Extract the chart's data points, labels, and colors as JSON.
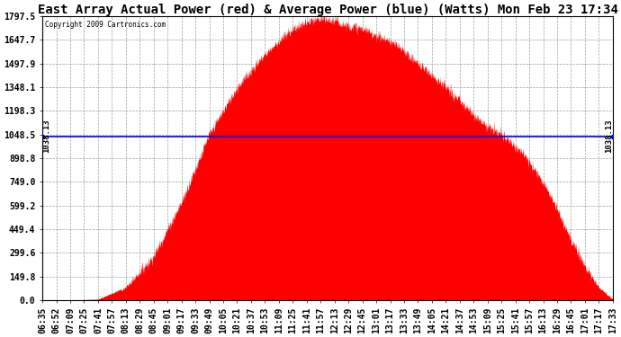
{
  "title": "East Array Actual Power (red) & Average Power (blue) (Watts) Mon Feb 23 17:34",
  "copyright": "Copyright 2009 Cartronics.com",
  "avg_power": 1038.13,
  "ylim": [
    0.0,
    1797.5
  ],
  "yticks": [
    0.0,
    149.8,
    299.6,
    449.4,
    599.2,
    749.0,
    898.8,
    1048.5,
    1198.3,
    1348.1,
    1497.9,
    1647.7,
    1797.5
  ],
  "ytick_labels": [
    "0.0",
    "149.8",
    "299.6",
    "449.4",
    "599.2",
    "749.0",
    "898.8",
    "1048.5",
    "1198.3",
    "1348.1",
    "1497.9",
    "1647.7",
    "1797.5"
  ],
  "x_labels": [
    "06:35",
    "06:52",
    "07:09",
    "07:25",
    "07:41",
    "07:57",
    "08:13",
    "08:29",
    "08:45",
    "09:01",
    "09:17",
    "09:33",
    "09:49",
    "10:05",
    "10:21",
    "10:37",
    "10:53",
    "11:09",
    "11:25",
    "11:41",
    "11:57",
    "12:13",
    "12:29",
    "12:45",
    "13:01",
    "13:17",
    "13:33",
    "13:49",
    "14:05",
    "14:21",
    "14:37",
    "14:53",
    "15:09",
    "15:25",
    "15:41",
    "15:57",
    "16:13",
    "16:29",
    "16:45",
    "17:01",
    "17:17",
    "17:33"
  ],
  "avg_label": "1038.13",
  "fill_color": "#FF0000",
  "line_color": "#0000FF",
  "background_color": "#FFFFFF",
  "grid_color": "#888888",
  "title_fontsize": 10,
  "tick_fontsize": 7,
  "label_fontsize": 7
}
